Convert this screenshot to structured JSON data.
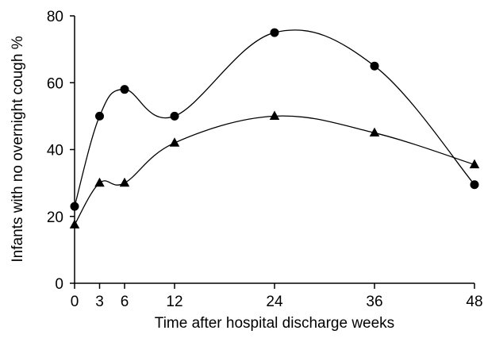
{
  "chart_data": {
    "type": "line",
    "title": "",
    "xlabel": "Time after hospital discharge  weeks",
    "ylabel": "Infants with no overnight cough  %",
    "xlim": [
      0,
      48
    ],
    "ylim": [
      0,
      80
    ],
    "x_ticks": [
      0,
      3,
      6,
      12,
      24,
      36,
      48
    ],
    "y_ticks": [
      0,
      20,
      40,
      60,
      80
    ],
    "grid": false,
    "legend": "none",
    "series": [
      {
        "marker": "circle",
        "color": "#000000",
        "x": [
          0,
          3,
          6,
          12,
          24,
          36,
          48
        ],
        "y": [
          23,
          50,
          58,
          50,
          75,
          65,
          29.5
        ]
      },
      {
        "marker": "triangle",
        "color": "#000000",
        "x": [
          0,
          3,
          6,
          12,
          24,
          36,
          48
        ],
        "y": [
          17.5,
          30,
          30,
          42,
          50,
          45,
          35.5
        ]
      }
    ]
  }
}
